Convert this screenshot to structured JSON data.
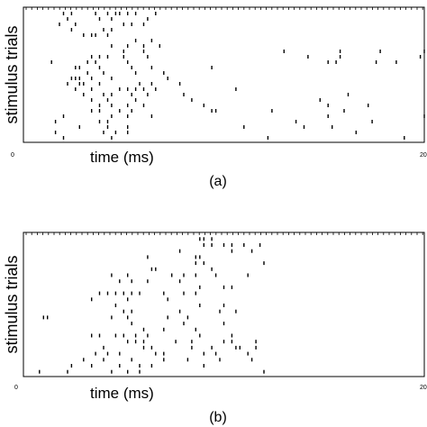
{
  "panels": [
    {
      "label": "(a)",
      "xlabel": "time (ms)",
      "ylabel": "stimulus trials",
      "xlim": [
        0,
        2000
      ],
      "x_tick_labels": [
        "0",
        "200"
      ],
      "spikes": [
        [
          [
            200,
            1
          ],
          [
            240,
            1
          ],
          [
            360,
            1
          ],
          [
            420,
            1
          ],
          [
            460,
            1
          ],
          [
            480,
            1
          ],
          [
            520,
            1
          ],
          [
            560,
            1
          ],
          [
            660,
            1
          ]
        ],
        [
          [
            220,
            2
          ],
          [
            380,
            2
          ],
          [
            440,
            2
          ],
          [
            620,
            2
          ]
        ],
        [
          [
            180,
            3
          ],
          [
            260,
            3
          ],
          [
            500,
            3
          ],
          [
            540,
            3
          ],
          [
            600,
            3
          ]
        ],
        [
          [
            240,
            4
          ],
          [
            400,
            4
          ],
          [
            440,
            4
          ]
        ],
        [
          [
            300,
            5
          ],
          [
            340,
            5
          ],
          [
            360,
            5
          ],
          [
            420,
            5
          ]
        ],
        [
          [
            560,
            6
          ],
          [
            640,
            6
          ]
        ],
        [
          [
            440,
            7
          ],
          [
            520,
            7
          ],
          [
            600,
            7
          ],
          [
            680,
            7
          ]
        ],
        [
          [
            500,
            8
          ],
          [
            600,
            8
          ],
          [
            1300,
            8
          ],
          [
            1580,
            8
          ],
          [
            1780,
            8
          ],
          [
            2000,
            8
          ]
        ],
        [
          [
            340,
            9
          ],
          [
            380,
            9
          ],
          [
            420,
            9
          ],
          [
            500,
            9
          ],
          [
            620,
            9
          ],
          [
            1420,
            9
          ],
          [
            1580,
            9
          ],
          [
            1980,
            9
          ]
        ],
        [
          [
            140,
            10
          ],
          [
            320,
            10
          ],
          [
            360,
            10
          ],
          [
            520,
            10
          ],
          [
            1520,
            10
          ],
          [
            1560,
            10
          ],
          [
            1760,
            10
          ],
          [
            1860,
            10
          ]
        ],
        [
          [
            260,
            11
          ],
          [
            280,
            11
          ],
          [
            380,
            11
          ],
          [
            540,
            11
          ],
          [
            640,
            11
          ],
          [
            940,
            11
          ]
        ],
        [
          [
            320,
            12
          ],
          [
            400,
            12
          ],
          [
            560,
            12
          ],
          [
            700,
            12
          ]
        ],
        [
          [
            240,
            13
          ],
          [
            260,
            13
          ],
          [
            280,
            13
          ],
          [
            340,
            13
          ],
          [
            440,
            13
          ],
          [
            720,
            13
          ]
        ],
        [
          [
            220,
            14
          ],
          [
            280,
            14
          ],
          [
            300,
            14
          ],
          [
            380,
            14
          ],
          [
            580,
            14
          ],
          [
            640,
            14
          ],
          [
            780,
            14
          ]
        ],
        [
          [
            260,
            15
          ],
          [
            340,
            15
          ],
          [
            480,
            15
          ],
          [
            520,
            15
          ],
          [
            560,
            15
          ],
          [
            600,
            15
          ],
          [
            660,
            15
          ],
          [
            1060,
            15
          ]
        ],
        [
          [
            300,
            16
          ],
          [
            400,
            16
          ],
          [
            440,
            16
          ],
          [
            540,
            16
          ],
          [
            620,
            16
          ],
          [
            800,
            16
          ],
          [
            1620,
            16
          ]
        ],
        [
          [
            340,
            17
          ],
          [
            420,
            17
          ],
          [
            560,
            17
          ],
          [
            840,
            17
          ],
          [
            1480,
            17
          ]
        ],
        [
          [
            380,
            18
          ],
          [
            440,
            18
          ],
          [
            520,
            18
          ],
          [
            600,
            18
          ],
          [
            900,
            18
          ],
          [
            1520,
            18
          ],
          [
            1720,
            18
          ]
        ],
        [
          [
            340,
            19
          ],
          [
            380,
            19
          ],
          [
            480,
            19
          ],
          [
            540,
            19
          ],
          [
            940,
            19
          ],
          [
            960,
            19
          ],
          [
            1240,
            19
          ],
          [
            1600,
            19
          ]
        ],
        [
          [
            200,
            20
          ],
          [
            440,
            20
          ],
          [
            520,
            20
          ],
          [
            640,
            20
          ],
          [
            1520,
            20
          ],
          [
            2000,
            20
          ]
        ],
        [
          [
            160,
            21
          ],
          [
            380,
            21
          ],
          [
            420,
            21
          ],
          [
            1360,
            21
          ],
          [
            1740,
            21
          ]
        ],
        [
          [
            280,
            22
          ],
          [
            420,
            22
          ],
          [
            520,
            22
          ],
          [
            1100,
            22
          ],
          [
            1400,
            22
          ],
          [
            1540,
            22
          ]
        ],
        [
          [
            160,
            23
          ],
          [
            400,
            23
          ],
          [
            460,
            23
          ],
          [
            520,
            23
          ],
          [
            1660,
            23
          ]
        ],
        [
          [
            200,
            24
          ],
          [
            440,
            24
          ],
          [
            1220,
            24
          ],
          [
            1900,
            24
          ]
        ]
      ]
    },
    {
      "label": "(b)",
      "xlabel": "time (ms)",
      "ylabel": "stimulus trials",
      "xlim": [
        0,
        2000
      ],
      "x_tick_labels": [
        "0",
        "200"
      ],
      "spikes": [
        [
          [
            880,
            1
          ],
          [
            900,
            1
          ],
          [
            940,
            1
          ]
        ],
        [
          [
            900,
            2
          ],
          [
            940,
            2
          ],
          [
            1000,
            2
          ],
          [
            1040,
            2
          ],
          [
            1100,
            2
          ],
          [
            1180,
            2
          ]
        ],
        [
          [
            780,
            3
          ],
          [
            1040,
            3
          ],
          [
            1140,
            3
          ]
        ],
        [
          [
            620,
            4
          ],
          [
            860,
            4
          ],
          [
            880,
            4
          ]
        ],
        [
          [
            860,
            5
          ],
          [
            900,
            5
          ],
          [
            1200,
            5
          ]
        ],
        [
          [
            640,
            6
          ],
          [
            660,
            6
          ],
          [
            940,
            6
          ]
        ],
        [
          [
            440,
            7
          ],
          [
            520,
            7
          ],
          [
            740,
            7
          ],
          [
            800,
            7
          ],
          [
            860,
            7
          ],
          [
            960,
            7
          ],
          [
            1120,
            7
          ]
        ],
        [
          [
            480,
            8
          ],
          [
            540,
            8
          ],
          [
            620,
            8
          ],
          [
            780,
            8
          ]
        ],
        [
          [
            880,
            9
          ],
          [
            1000,
            9
          ],
          [
            1040,
            9
          ]
        ],
        [
          [
            380,
            10
          ],
          [
            420,
            10
          ],
          [
            460,
            10
          ],
          [
            500,
            10
          ],
          [
            540,
            10
          ],
          [
            580,
            10
          ],
          [
            700,
            10
          ],
          [
            800,
            10
          ],
          [
            860,
            10
          ]
        ],
        [
          [
            340,
            11
          ],
          [
            520,
            11
          ],
          [
            720,
            11
          ]
        ],
        [
          [
            460,
            12
          ],
          [
            880,
            12
          ],
          [
            1000,
            12
          ]
        ],
        [
          [
            500,
            13
          ],
          [
            540,
            13
          ],
          [
            780,
            13
          ],
          [
            980,
            13
          ],
          [
            1060,
            13
          ]
        ],
        [
          [
            100,
            14
          ],
          [
            120,
            14
          ],
          [
            440,
            14
          ],
          [
            520,
            14
          ],
          [
            720,
            14
          ],
          [
            820,
            14
          ]
        ],
        [
          [
            540,
            15
          ],
          [
            800,
            15
          ],
          [
            1000,
            15
          ]
        ],
        [
          [
            600,
            16
          ],
          [
            700,
            16
          ],
          [
            860,
            16
          ]
        ],
        [
          [
            340,
            17
          ],
          [
            380,
            17
          ],
          [
            460,
            17
          ],
          [
            500,
            17
          ],
          [
            560,
            17
          ],
          [
            620,
            17
          ],
          [
            880,
            17
          ],
          [
            1040,
            17
          ]
        ],
        [
          [
            520,
            18
          ],
          [
            560,
            18
          ],
          [
            600,
            18
          ],
          [
            760,
            18
          ],
          [
            840,
            18
          ],
          [
            1000,
            18
          ],
          [
            1040,
            18
          ],
          [
            1160,
            18
          ]
        ],
        [
          [
            400,
            19
          ],
          [
            600,
            19
          ],
          [
            640,
            19
          ],
          [
            840,
            19
          ],
          [
            940,
            19
          ],
          [
            1060,
            19
          ],
          [
            1080,
            19
          ],
          [
            1160,
            19
          ]
        ],
        [
          [
            360,
            20
          ],
          [
            420,
            20
          ],
          [
            480,
            20
          ],
          [
            660,
            20
          ],
          [
            700,
            20
          ],
          [
            900,
            20
          ],
          [
            960,
            20
          ],
          [
            1120,
            20
          ]
        ],
        [
          [
            300,
            21
          ],
          [
            400,
            21
          ],
          [
            540,
            21
          ],
          [
            700,
            21
          ],
          [
            820,
            21
          ],
          [
            980,
            21
          ],
          [
            1140,
            21
          ]
        ],
        [
          [
            240,
            22
          ],
          [
            340,
            22
          ],
          [
            480,
            22
          ],
          [
            580,
            22
          ],
          [
            640,
            22
          ],
          [
            900,
            22
          ]
        ],
        [
          [
            80,
            23
          ],
          [
            220,
            23
          ],
          [
            440,
            23
          ],
          [
            520,
            23
          ],
          [
            580,
            23
          ],
          [
            1200,
            23
          ]
        ]
      ]
    }
  ]
}
